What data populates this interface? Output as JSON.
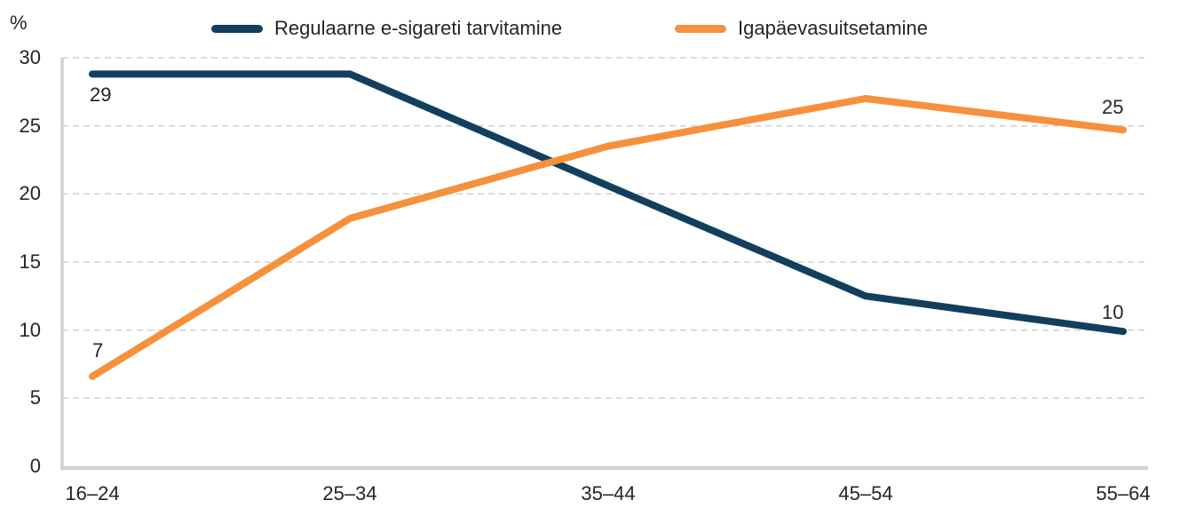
{
  "chart_data": {
    "type": "line",
    "title": "",
    "ylabel": "%",
    "xlabel": "",
    "ylim": [
      0,
      30
    ],
    "yticks": [
      30,
      25,
      20,
      15,
      10,
      5,
      0
    ],
    "grid": "horizontal-dashed",
    "legend_position": "top",
    "categories": [
      "16–24",
      "25–34",
      "35–44",
      "45–54",
      "55–64"
    ],
    "series": [
      {
        "name": "Regulaarne e-sigareti tarvitamine",
        "color": "#123f5d",
        "values": [
          28.8,
          28.8,
          20.6,
          12.5,
          9.9
        ],
        "point_labels": {
          "first": "29",
          "last": "10"
        }
      },
      {
        "name": "Igapäevasuitsetamine",
        "color": "#f5913c",
        "values": [
          6.6,
          18.2,
          23.5,
          27.0,
          24.7
        ],
        "point_labels": {
          "first": "7",
          "last": "25"
        }
      }
    ]
  }
}
